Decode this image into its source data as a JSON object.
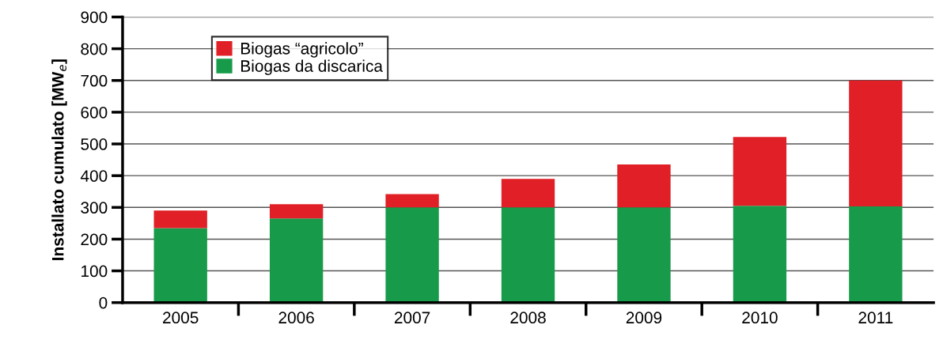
{
  "chart_data": {
    "type": "bar",
    "stacked": true,
    "ylabel": "Installato cumulato [MW$_{e}$]",
    "categories": [
      "2005",
      "2006",
      "2007",
      "2008",
      "2009",
      "2010",
      "2011"
    ],
    "series": [
      {
        "name": "Biogas da discarica",
        "color": "#179b4b",
        "values": [
          235,
          265,
          300,
          300,
          300,
          305,
          303
        ]
      },
      {
        "name": "Biogas “agricolo”",
        "color": "#e01f26",
        "values": [
          55,
          45,
          42,
          90,
          135,
          217,
          397
        ]
      }
    ],
    "ylim": [
      0,
      900
    ],
    "yticks": [
      0,
      100,
      200,
      300,
      400,
      500,
      600,
      700,
      800,
      900
    ],
    "grid": "y",
    "legend": "top left"
  }
}
